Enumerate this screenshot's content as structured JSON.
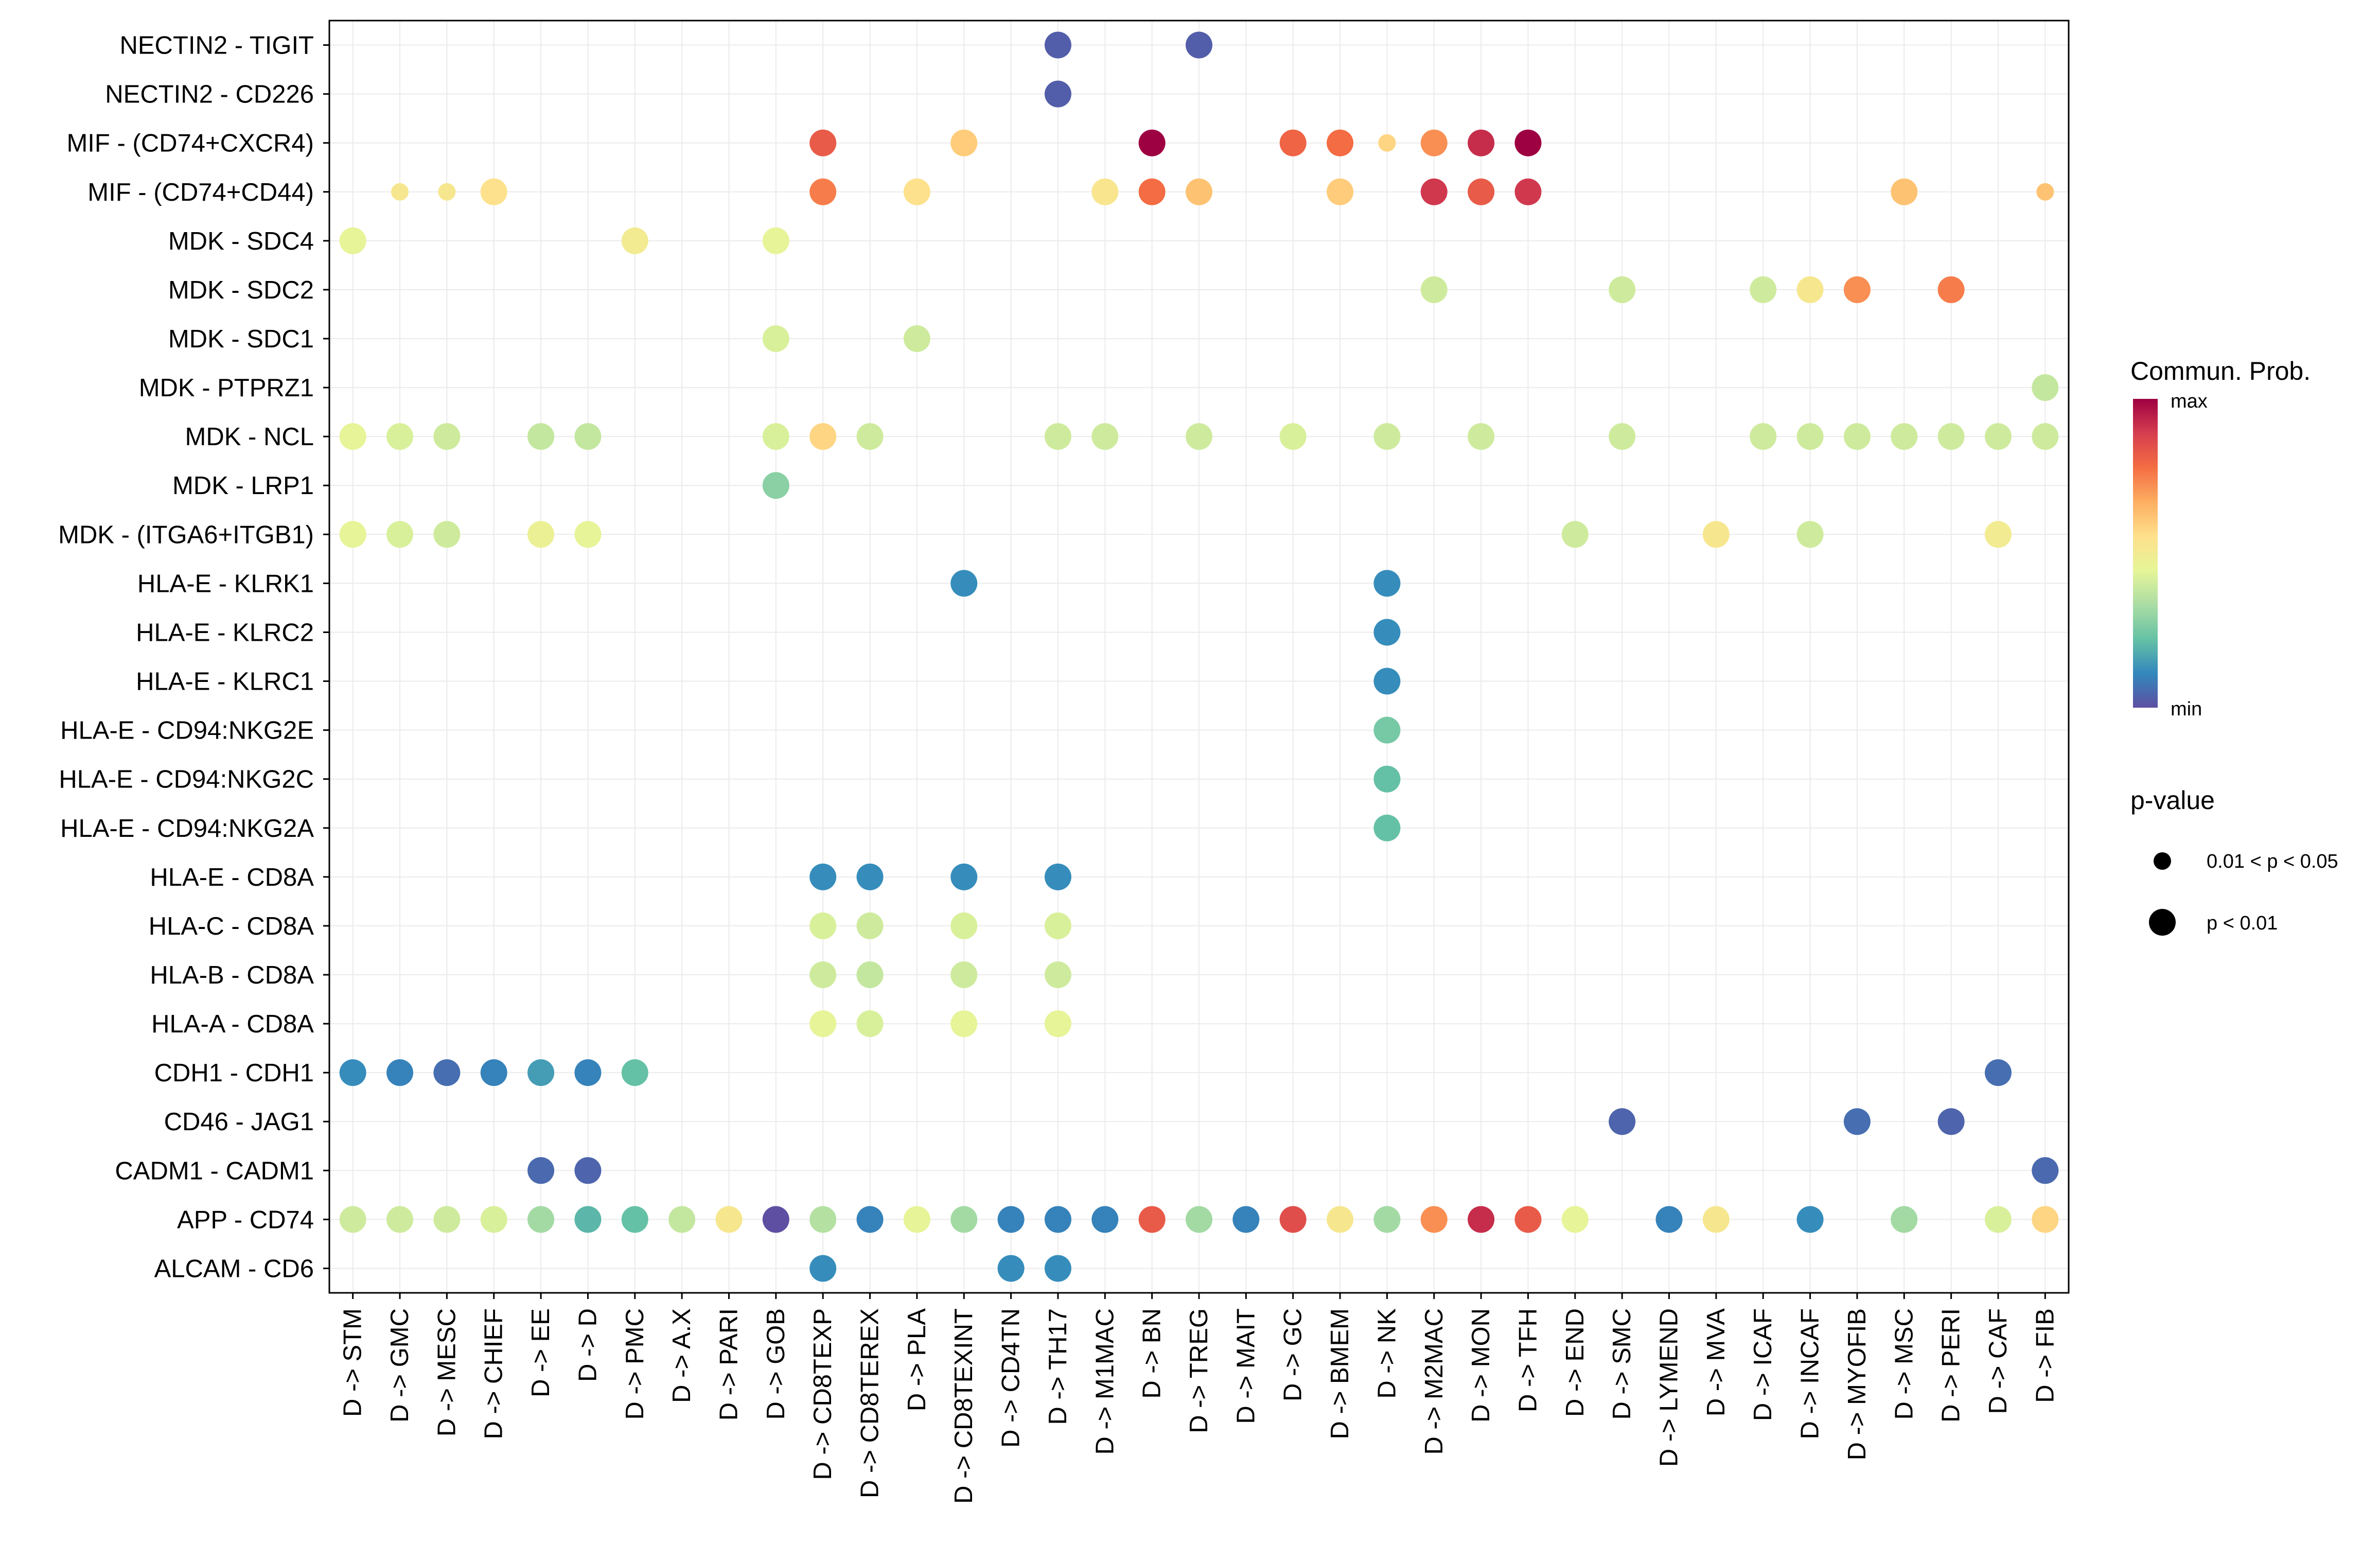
{
  "chart_data": {
    "type": "dot",
    "x_categories": [
      "D -> STM",
      "D -> GMC",
      "D -> MESC",
      "D -> CHIEF",
      "D -> EE",
      "D -> D",
      "D -> PMC",
      "D -> A.X",
      "D -> PARI",
      "D -> GOB",
      "D -> CD8TEXP",
      "D -> CD8TEREX",
      "D -> PLA",
      "D -> CD8TEXINT",
      "D -> CD4TN",
      "D -> TH17",
      "D -> M1MAC",
      "D -> BN",
      "D -> TREG",
      "D -> MAIT",
      "D -> GC",
      "D -> BMEM",
      "D -> NK",
      "D -> M2MAC",
      "D -> MON",
      "D -> TFH",
      "D -> END",
      "D -> SMC",
      "D -> LYMEND",
      "D -> MVA",
      "D -> ICAF",
      "D -> INCAF",
      "D -> MYOFIB",
      "D -> MSC",
      "D -> PERI",
      "D -> CAF",
      "D -> FIB"
    ],
    "y_categories": [
      "NECTIN2 - TIGIT",
      "NECTIN2 - CD226",
      "MIF - (CD74+CXCR4)",
      "MIF - (CD74+CD44)",
      "MDK - SDC4",
      "MDK - SDC2",
      "MDK - SDC1",
      "MDK - PTPRZ1",
      "MDK - NCL",
      "MDK - LRP1",
      "MDK - (ITGA6+ITGB1)",
      "HLA-E - KLRK1",
      "HLA-E - KLRC2",
      "HLA-E - KLRC1",
      "HLA-E - CD94:NKG2E",
      "HLA-E - CD94:NKG2C",
      "HLA-E - CD94:NKG2A",
      "HLA-E - CD8A",
      "HLA-C - CD8A",
      "HLA-B - CD8A",
      "HLA-A - CD8A",
      "CDH1 - CDH1",
      "CD46 - JAG1",
      "CADM1 - CADM1",
      "APP - CD74",
      "ALCAM - CD6"
    ],
    "note": "points: [x_index, y_index, prob 0(min)-1(max), pvalue class 0 = 0.01<p<0.05 (small), 1 = p<0.01 (large)]",
    "points": [
      [
        15,
        0,
        0.03,
        1
      ],
      [
        18,
        0,
        0.03,
        1
      ],
      [
        15,
        1,
        0.03,
        1
      ],
      [
        10,
        2,
        0.82,
        1
      ],
      [
        13,
        2,
        0.6,
        1
      ],
      [
        17,
        2,
        1.0,
        1
      ],
      [
        20,
        2,
        0.8,
        1
      ],
      [
        21,
        2,
        0.78,
        1
      ],
      [
        22,
        2,
        0.58,
        0
      ],
      [
        23,
        2,
        0.72,
        1
      ],
      [
        24,
        2,
        0.92,
        1
      ],
      [
        25,
        2,
        1.0,
        1
      ],
      [
        1,
        3,
        0.52,
        0
      ],
      [
        2,
        3,
        0.52,
        0
      ],
      [
        3,
        3,
        0.55,
        1
      ],
      [
        10,
        3,
        0.75,
        1
      ],
      [
        12,
        3,
        0.55,
        1
      ],
      [
        16,
        3,
        0.53,
        1
      ],
      [
        17,
        3,
        0.78,
        1
      ],
      [
        18,
        3,
        0.62,
        1
      ],
      [
        21,
        3,
        0.6,
        1
      ],
      [
        23,
        3,
        0.9,
        1
      ],
      [
        24,
        3,
        0.82,
        1
      ],
      [
        25,
        3,
        0.9,
        1
      ],
      [
        33,
        3,
        0.62,
        1
      ],
      [
        36,
        3,
        0.62,
        0
      ],
      [
        0,
        4,
        0.45,
        1
      ],
      [
        6,
        4,
        0.5,
        1
      ],
      [
        9,
        4,
        0.45,
        1
      ],
      [
        23,
        5,
        0.4,
        1
      ],
      [
        27,
        5,
        0.4,
        1
      ],
      [
        30,
        5,
        0.4,
        1
      ],
      [
        31,
        5,
        0.52,
        1
      ],
      [
        32,
        5,
        0.72,
        1
      ],
      [
        34,
        5,
        0.75,
        1
      ],
      [
        9,
        6,
        0.42,
        1
      ],
      [
        12,
        6,
        0.4,
        1
      ],
      [
        36,
        7,
        0.38,
        1
      ],
      [
        0,
        8,
        0.45,
        1
      ],
      [
        1,
        8,
        0.42,
        1
      ],
      [
        2,
        8,
        0.4,
        1
      ],
      [
        4,
        8,
        0.38,
        1
      ],
      [
        5,
        8,
        0.38,
        1
      ],
      [
        9,
        8,
        0.42,
        1
      ],
      [
        10,
        8,
        0.58,
        1
      ],
      [
        11,
        8,
        0.4,
        1
      ],
      [
        15,
        8,
        0.4,
        1
      ],
      [
        16,
        8,
        0.4,
        1
      ],
      [
        18,
        8,
        0.4,
        1
      ],
      [
        20,
        8,
        0.42,
        1
      ],
      [
        22,
        8,
        0.4,
        1
      ],
      [
        24,
        8,
        0.4,
        1
      ],
      [
        27,
        8,
        0.4,
        1
      ],
      [
        30,
        8,
        0.4,
        1
      ],
      [
        31,
        8,
        0.4,
        1
      ],
      [
        32,
        8,
        0.4,
        1
      ],
      [
        33,
        8,
        0.4,
        1
      ],
      [
        34,
        8,
        0.4,
        1
      ],
      [
        35,
        8,
        0.4,
        1
      ],
      [
        36,
        8,
        0.4,
        1
      ],
      [
        9,
        9,
        0.28,
        1
      ],
      [
        31,
        10,
        0.4,
        1
      ],
      [
        0,
        10,
        0.45,
        1
      ],
      [
        1,
        10,
        0.42,
        1
      ],
      [
        2,
        10,
        0.4,
        1
      ],
      [
        4,
        10,
        0.47,
        1
      ],
      [
        5,
        10,
        0.45,
        1
      ],
      [
        26,
        10,
        0.4,
        1
      ],
      [
        29,
        10,
        0.52,
        1
      ],
      [
        35,
        10,
        0.5,
        1
      ],
      [
        13,
        11,
        0.12,
        1
      ],
      [
        22,
        11,
        0.12,
        1
      ],
      [
        22,
        12,
        0.12,
        1
      ],
      [
        22,
        13,
        0.12,
        1
      ],
      [
        22,
        14,
        0.25,
        1
      ],
      [
        22,
        15,
        0.22,
        1
      ],
      [
        22,
        16,
        0.22,
        1
      ],
      [
        10,
        17,
        0.12,
        1
      ],
      [
        11,
        17,
        0.12,
        1
      ],
      [
        13,
        17,
        0.12,
        1
      ],
      [
        15,
        17,
        0.12,
        1
      ],
      [
        10,
        18,
        0.42,
        1
      ],
      [
        11,
        18,
        0.4,
        1
      ],
      [
        13,
        18,
        0.42,
        1
      ],
      [
        15,
        18,
        0.42,
        1
      ],
      [
        10,
        19,
        0.4,
        1
      ],
      [
        11,
        19,
        0.38,
        1
      ],
      [
        13,
        19,
        0.4,
        1
      ],
      [
        15,
        19,
        0.4,
        1
      ],
      [
        10,
        20,
        0.45,
        1
      ],
      [
        11,
        20,
        0.42,
        1
      ],
      [
        13,
        20,
        0.45,
        1
      ],
      [
        15,
        20,
        0.45,
        1
      ],
      [
        0,
        21,
        0.12,
        1
      ],
      [
        1,
        21,
        0.1,
        1
      ],
      [
        2,
        21,
        0.06,
        1
      ],
      [
        3,
        21,
        0.1,
        1
      ],
      [
        4,
        21,
        0.15,
        1
      ],
      [
        5,
        21,
        0.1,
        1
      ],
      [
        6,
        21,
        0.22,
        1
      ],
      [
        35,
        21,
        0.06,
        1
      ],
      [
        27,
        22,
        0.04,
        1
      ],
      [
        32,
        22,
        0.06,
        1
      ],
      [
        34,
        22,
        0.04,
        1
      ],
      [
        4,
        23,
        0.05,
        1
      ],
      [
        5,
        23,
        0.04,
        1
      ],
      [
        36,
        23,
        0.05,
        1
      ],
      [
        0,
        24,
        0.4,
        1
      ],
      [
        1,
        24,
        0.4,
        1
      ],
      [
        2,
        24,
        0.4,
        1
      ],
      [
        3,
        24,
        0.42,
        1
      ],
      [
        4,
        24,
        0.32,
        1
      ],
      [
        5,
        24,
        0.2,
        1
      ],
      [
        6,
        24,
        0.22,
        1
      ],
      [
        7,
        24,
        0.38,
        1
      ],
      [
        8,
        24,
        0.52,
        1
      ],
      [
        9,
        24,
        0.0,
        1
      ],
      [
        10,
        24,
        0.35,
        1
      ],
      [
        11,
        24,
        0.1,
        1
      ],
      [
        12,
        24,
        0.45,
        1
      ],
      [
        13,
        24,
        0.32,
        1
      ],
      [
        14,
        24,
        0.1,
        1
      ],
      [
        15,
        24,
        0.1,
        1
      ],
      [
        16,
        24,
        0.1,
        1
      ],
      [
        17,
        24,
        0.82,
        1
      ],
      [
        18,
        24,
        0.32,
        1
      ],
      [
        19,
        24,
        0.1,
        1
      ],
      [
        20,
        24,
        0.85,
        1
      ],
      [
        21,
        24,
        0.52,
        1
      ],
      [
        22,
        24,
        0.32,
        1
      ],
      [
        23,
        24,
        0.72,
        1
      ],
      [
        24,
        24,
        0.92,
        1
      ],
      [
        25,
        24,
        0.82,
        1
      ],
      [
        26,
        24,
        0.45,
        1
      ],
      [
        28,
        24,
        0.1,
        1
      ],
      [
        29,
        24,
        0.52,
        1
      ],
      [
        31,
        24,
        0.12,
        1
      ],
      [
        33,
        24,
        0.32,
        1
      ],
      [
        35,
        24,
        0.42,
        1
      ],
      [
        36,
        24,
        0.58,
        1
      ],
      [
        10,
        25,
        0.12,
        1
      ],
      [
        14,
        25,
        0.12,
        1
      ],
      [
        15,
        25,
        0.12,
        1
      ]
    ],
    "legend": {
      "color_title": "Commun. Prob.",
      "color_max_label": "max",
      "color_min_label": "min",
      "size_title": "p-value",
      "size_labels": [
        "0.01 < p < 0.05",
        "p < 0.01"
      ]
    },
    "colors": {
      "palette": [
        "#5E4FA2",
        "#3288BD",
        "#66C2A5",
        "#ABDDA4",
        "#E6F598",
        "#FEE08B",
        "#FDAE61",
        "#F46D43",
        "#D53E4F",
        "#9E0142"
      ]
    }
  }
}
